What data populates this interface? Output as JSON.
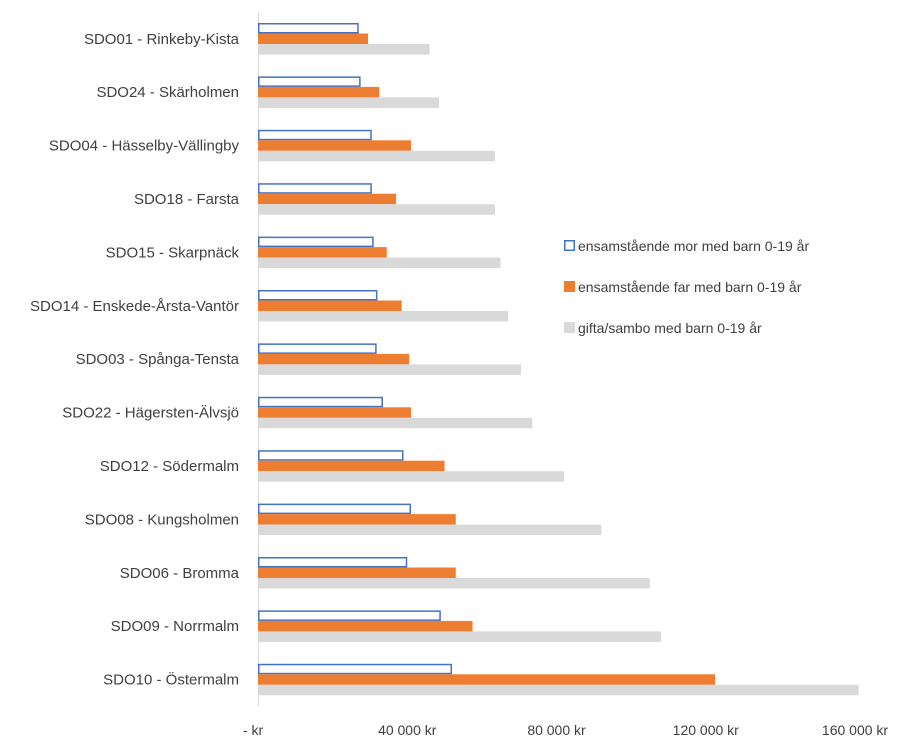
{
  "chart_data": {
    "type": "bar",
    "orientation": "horizontal",
    "categories": [
      "SDO01 - Rinkeby-Kista",
      "SDO24 - Skärholmen",
      "SDO04 - Hässelby-Vällingby",
      "SDO18 - Farsta",
      "SDO15 - Skarpnäck",
      "SDO14 - Enskede-Årsta-Vantör",
      "SDO03 - Spånga-Tensta",
      "SDO22 - Hägersten-Älvsjö",
      "SDO12 - Södermalm",
      "SDO08 - Kungsholmen",
      "SDO06 - Bromma",
      "SDO09 - Norrmalm",
      "SDO10 - Östermalm"
    ],
    "series": [
      {
        "name": "ensamstående mor med barn 0-19 år",
        "color": "#4472C4",
        "style": "outline",
        "values": [
          27000,
          27500,
          30500,
          30500,
          31000,
          32000,
          31800,
          33500,
          39000,
          41000,
          40000,
          49000,
          52000
        ]
      },
      {
        "name": "ensamstående far med barn 0-19 år",
        "color": "#ED7D31",
        "style": "filled",
        "values": [
          29500,
          32500,
          41000,
          37000,
          34500,
          38500,
          40500,
          41000,
          50000,
          53000,
          53000,
          57500,
          122500
        ]
      },
      {
        "name": "gifta/sambo med barn 0-19 år",
        "color": "#D9D9D9",
        "style": "filled",
        "values": [
          46000,
          48500,
          63500,
          63500,
          65000,
          67000,
          70500,
          73500,
          82000,
          92000,
          105000,
          108000,
          161000
        ]
      }
    ],
    "xlim": [
      0,
      160000
    ],
    "xticks": [
      0,
      40000,
      80000,
      120000,
      160000
    ],
    "xtick_labels": [
      "-   kr",
      "40 000 kr",
      "80 000 kr",
      "120 000 kr",
      "160 000 kr"
    ],
    "legend_position": "right",
    "grid": false,
    "title": "",
    "xlabel": "",
    "ylabel": ""
  }
}
